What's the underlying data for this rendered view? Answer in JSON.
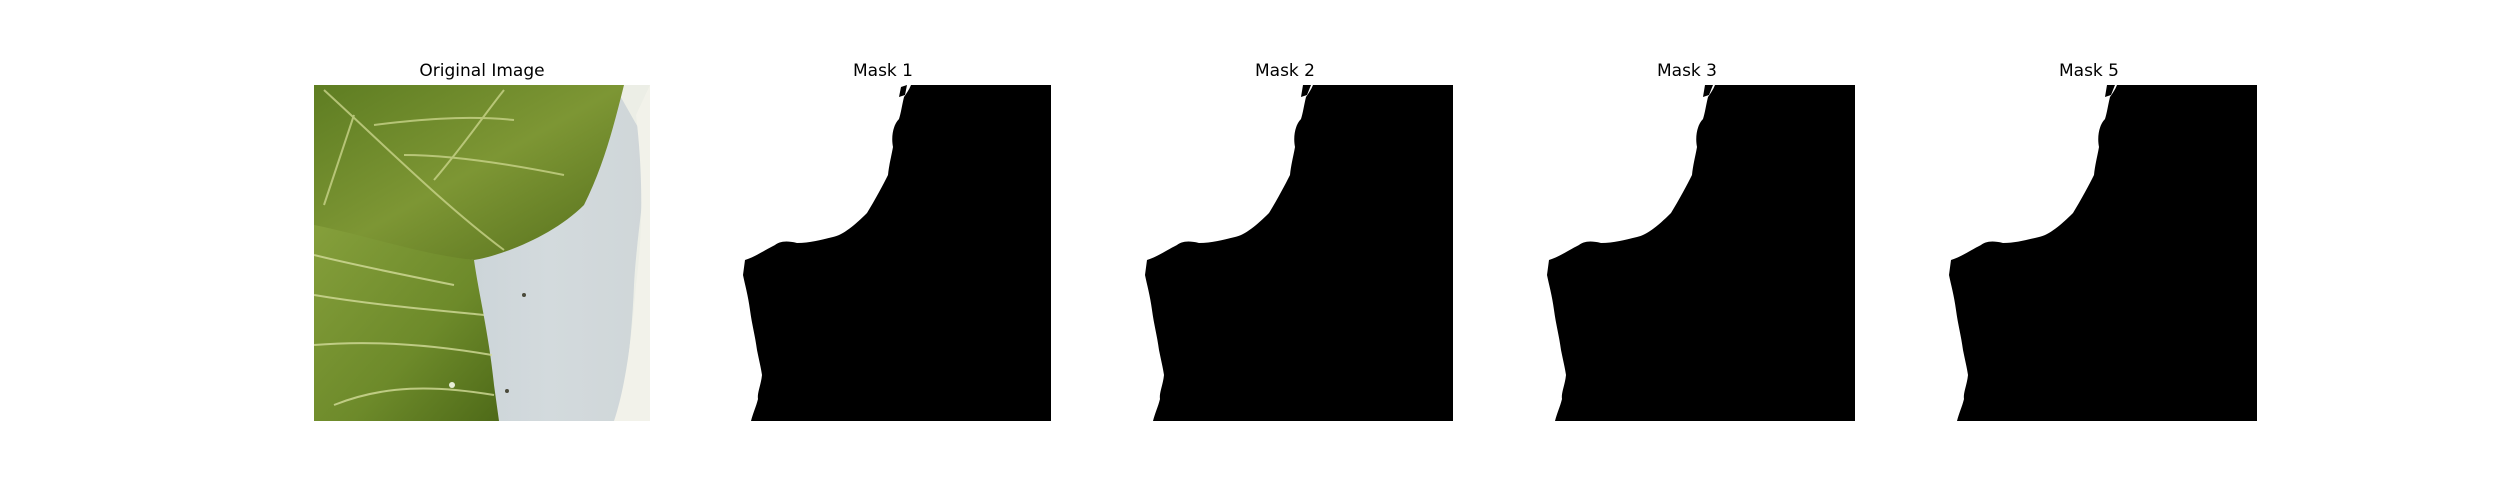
{
  "panels": [
    {
      "title": "Original Image"
    },
    {
      "title": "Mask 1"
    },
    {
      "title": "Mask 2"
    },
    {
      "title": "Mask 3"
    },
    {
      "title": "Mask 5"
    }
  ],
  "colors": {
    "background": "#ffffff",
    "mask_fill": "#000000",
    "leaf_green": "#6f8a2c",
    "shadow_blue": "#c5d0d3",
    "tray_white": "#e9ebe4"
  }
}
